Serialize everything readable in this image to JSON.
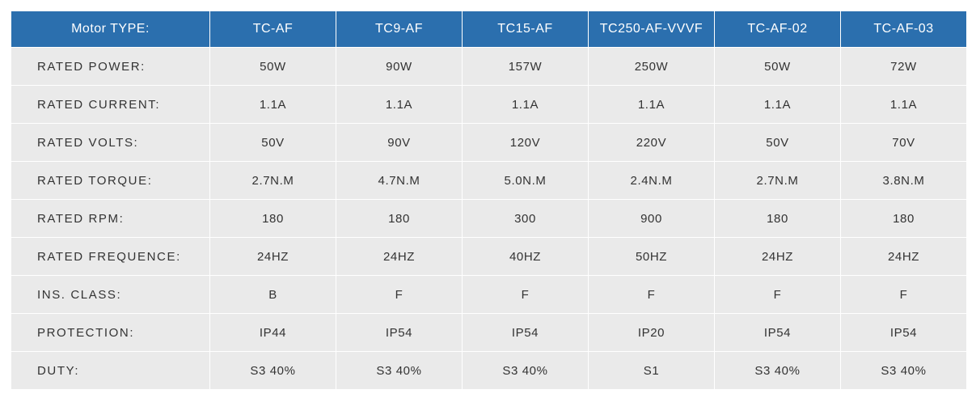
{
  "table": {
    "header": [
      "Motor TYPE:",
      "TC-AF",
      "TC9-AF",
      "TC15-AF",
      "TC250-AF-VVVF",
      "TC-AF-02",
      "TC-AF-03"
    ],
    "rows": [
      {
        "label": "RATED POWER:",
        "values": [
          "50W",
          "90W",
          "157W",
          "250W",
          "50W",
          "72W"
        ]
      },
      {
        "label": "RATED CURRENT:",
        "values": [
          "1.1A",
          "1.1A",
          "1.1A",
          "1.1A",
          "1.1A",
          "1.1A"
        ]
      },
      {
        "label": "RATED VOLTS:",
        "values": [
          "50V",
          "90V",
          "120V",
          "220V",
          "50V",
          "70V"
        ]
      },
      {
        "label": "RATED TORQUE:",
        "values": [
          "2.7N.M",
          "4.7N.M",
          "5.0N.M",
          "2.4N.M",
          "2.7N.M",
          "3.8N.M"
        ]
      },
      {
        "label": "RATED RPM:",
        "values": [
          "180",
          "180",
          "300",
          "900",
          "180",
          "180"
        ]
      },
      {
        "label": "RATED FREQUENCE:",
        "values": [
          "24HZ",
          "24HZ",
          "40HZ",
          "50HZ",
          "24HZ",
          "24HZ"
        ]
      },
      {
        "label": "INS. CLASS:",
        "values": [
          "B",
          "F",
          "F",
          "F",
          "F",
          "F"
        ]
      },
      {
        "label": "PROTECTION:",
        "values": [
          "IP44",
          "IP54",
          "IP54",
          "IP20",
          "IP54",
          "IP54"
        ]
      },
      {
        "label": "DUTY:",
        "values": [
          "S3 40%",
          "S3 40%",
          "S3 40%",
          "S1",
          "S3 40%",
          "S3 40%"
        ]
      }
    ]
  },
  "colors": {
    "header_bg": "#2b6fae",
    "header_text": "#ffffff",
    "cell_bg": "#eaeaea",
    "cell_text": "#333333"
  }
}
